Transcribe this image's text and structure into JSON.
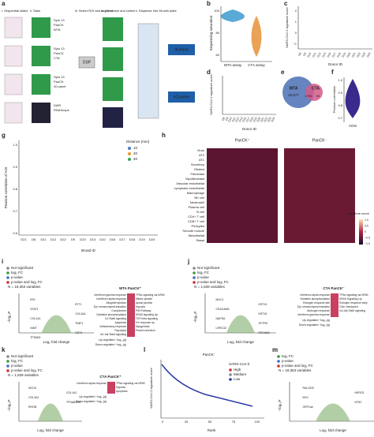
{
  "a": {
    "letter": "a",
    "steps": [
      "i. Sequential slides",
      "ii. Stain",
      "iii. Select ROI and segment",
      "iv. UV cleave and collect",
      "v. Dispense into 96-well plate"
    ],
    "stains": [
      [
        "Syto 13",
        "PanCK",
        "WTA"
      ],
      [
        "Syto 13",
        "PanCK",
        "CTA"
      ],
      [
        "Syto 13",
        "PanCK",
        "40 panel"
      ],
      [
        "DAPI",
        "RNAScope"
      ]
    ],
    "dsp": "DSP",
    "outputs": [
      "Illumina",
      "nCounter"
    ]
  },
  "b": {
    "letter": "b",
    "ylabel": "Sequencing saturation",
    "yticks": [
      "100",
      "80",
      "60"
    ],
    "categories": [
      "WTA assay",
      "CTA assay"
    ]
  },
  "c": {
    "letter": "c",
    "ylabel": "SARS-CoV-2 signature score",
    "xlabel": "Donor ID",
    "yticks": [
      "2",
      "1",
      "0",
      "−1"
    ],
    "categories": [
      "D8",
      "D9",
      "D10",
      "D11",
      "D12",
      "D13",
      "D16",
      "D17",
      "D18",
      "D19",
      "D20",
      "D21",
      "D22",
      "D23",
      "D24"
    ]
  },
  "d": {
    "letter": "d",
    "ylabel": "SARS-CoV-2 signature score",
    "xlabel": "Donor ID",
    "categories": [
      "D8",
      "D9",
      "D10",
      "D11",
      "D12",
      "D13",
      "D16",
      "D17",
      "D18",
      "D19",
      "D20",
      "D21",
      "D22",
      "D23",
      "D24"
    ]
  },
  "e": {
    "letter": "e",
    "sets": [
      "WTA",
      "CTA"
    ],
    "counts": [
      "18,577",
      "1784",
      "53"
    ]
  },
  "f": {
    "letter": "f",
    "ylabel": "Pearson correlation",
    "xlabel": "AOIs",
    "yticks": [
      "1.0",
      "0.9",
      "0.8",
      "0.7"
    ]
  },
  "g": {
    "letter": "g",
    "ylabel": "Pearson correlation of AOI",
    "xlabel": "Broad ID",
    "yticks": [
      "1.0",
      "0.9",
      "0.8",
      "0.7",
      "0.6"
    ],
    "categories": [
      "D21",
      "D8",
      "D11",
      "D12",
      "D22",
      "D9",
      "D23",
      "D13",
      "D10",
      "D16",
      "D17",
      "D18",
      "D19",
      "D24"
    ],
    "legend_title": "Distance (mm)",
    "legend": [
      "10",
      "20",
      "40"
    ]
  },
  "h": {
    "letter": "h",
    "groups": [
      "PanCK⁺",
      "PanCK⁻"
    ],
    "rows": [
      "Virus",
      "AT2",
      "AT1",
      "Secretory",
      "Ciliated",
      "Fibroblast",
      "Myofibroblast",
      "Vascular endothelial",
      "Lymphatic endothelial",
      "Macrophage",
      "NK cell",
      "Neutrophil",
      "Plasma cell",
      "B cell",
      "CD4+ T cell",
      "CD8+ T cell",
      "Pericytes",
      "Smooth muscle",
      "Mesothelial",
      "Basal"
    ],
    "colorbar_title": "Signature score",
    "colorbar_ticks": [
      "1.0",
      "0.5",
      "0",
      "−0.5",
      "−1.0"
    ]
  },
  "i": {
    "letter": "i",
    "legend": [
      "Not significant",
      "log₂ FC",
      "p-value",
      "p-value and log₂ FC"
    ],
    "n": "N = 18,363 variables",
    "title": "WTA PanCK⁺",
    "xlabel": "Log₂ fold change",
    "ylabel": "−log₁₀P",
    "genes": [
      "IFI6",
      "IFIT1",
      "STAT1",
      "COL3A1",
      "COL1A1",
      "TIMP1",
      "INMT",
      "CD74",
      "TPSAB1"
    ],
    "terms_left": [
      "Interferon gamma response",
      "Interferon alpha response",
      "Allograft rejection",
      "Epi. mesenchymal transition",
      "Complement",
      "Oxidative phosphorylation",
      "IL2 Stat5 signaling",
      "Apoptosis",
      "Inflammatory response",
      "Glycolysis",
      "IL6 Jak Stat3 signaling"
    ],
    "terms_right": [
      "TFNα signaling via NFkB",
      "Mitotic spindle",
      "Apical junction",
      "Hypoxia",
      "P53 Pathway",
      "KRAS signaling Up",
      "TGF beta signaling",
      "UV response up",
      "Myogenesis",
      "Protein secretion"
    ],
    "up": "Up-regulated −log₁₀(q)",
    "down": "Down-regulated −log₁₀(q)"
  },
  "j": {
    "letter": "j",
    "legend": [
      "Not significant",
      "log₂ FC",
      "p-value",
      "p-value and log₂ FC"
    ],
    "n": "N = 1,839 variables",
    "title": "CTA PanCK⁻",
    "xlabel": "Log₂ fold change",
    "ylabel": "−log₁₀P",
    "genes": [
      "MUC1",
      "KRT19",
      "CEACAM6",
      "KRT18",
      "NAPSA",
      "SFTPB",
      "LRRC32",
      "PECAM1"
    ],
    "terms_left": [
      "Interferon alpha response",
      "Oxidative phosphorylation",
      "Estrogen response late",
      "Epi. mesenchymal transition",
      "Androgen response",
      "Interferon gamma response"
    ],
    "terms_right": [
      "TFNα signaling via NFkB",
      "KRAS Signaling Up",
      "Estrogen response early",
      "G2m checkpoint",
      "IL6 Jak Stat3 signaling"
    ],
    "up": "Up-regulated −log₁₀(q)",
    "down": "Down-regulated −log₁₀(q)"
  },
  "k": {
    "letter": "k",
    "legend": [
      "Not significant",
      "log₂ FC",
      "p-value",
      "p-value and log₂ FC"
    ],
    "n": "N = 1,839 variables",
    "title": "CTA PanCK⁺",
    "xlabel": "Log₂ fold change",
    "ylabel": "−log₁₀P",
    "genes": [
      "ISG15",
      "COL1A1",
      "COL3A1",
      "TPSAB1/B2",
      "RHOB"
    ],
    "terms_left": [
      "Interferon alpha response"
    ],
    "terms_right": [
      "TFNα signaling via NFkB",
      "Hypoxia",
      "Apoptosis"
    ],
    "up": "Up-regulated −log₁₀(q)",
    "down": "Down-regulated −log₁₀(q)"
  },
  "l": {
    "letter": "l",
    "title": "PanCK⁻",
    "ylabel": "SARS-CoV-2 signature score",
    "xlabel": "Rank",
    "legend_title": "SARS-CoV-2",
    "legend": [
      "High",
      "Medium",
      "Low"
    ],
    "xticks": [
      "0",
      "25",
      "50",
      "75",
      "100"
    ]
  },
  "m": {
    "letter": "m",
    "legend": [
      "log₂ FC",
      "p-value",
      "p-value and log₂ FC"
    ],
    "n": "N = 18,363 variables",
    "xlabel": "Log₂ fold change",
    "ylabel": "−log₁₀P",
    "genes": [
      "RALGDS",
      "HERC5",
      "MX2",
      "NT5C",
      "ORF1ab"
    ]
  }
}
